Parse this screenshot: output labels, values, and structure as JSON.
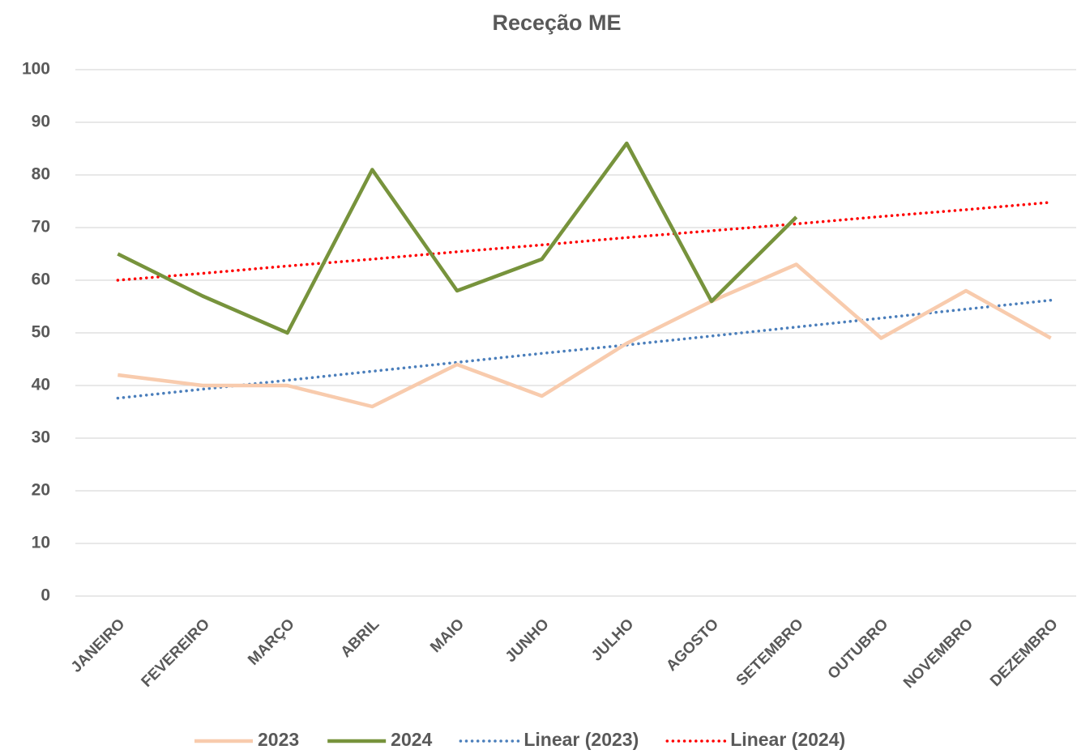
{
  "chart_data": {
    "type": "line",
    "title": "Receção ME",
    "categories": [
      "JANEIRO",
      "FEVEREIRO",
      "MARÇO",
      "ABRIL",
      "MAIO",
      "JUNHO",
      "JULHO",
      "AGOSTO",
      "SETEMBRO",
      "OUTUBRO",
      "NOVEMBRO",
      "DEZEMBRO"
    ],
    "series": [
      {
        "name": "2023",
        "color": "#f8cbad",
        "style": "solid",
        "values": [
          42,
          40,
          40,
          36,
          44,
          38,
          48,
          56,
          63,
          49,
          58,
          49
        ]
      },
      {
        "name": "2024",
        "color": "#77933c",
        "style": "solid",
        "values": [
          65,
          57,
          50,
          81,
          58,
          64,
          86,
          56,
          72,
          null,
          null,
          null
        ]
      },
      {
        "name": "Linear (2023)",
        "color": "#4a7ebb",
        "style": "dotted",
        "values": [
          37.6,
          39.3,
          41.0,
          42.7,
          44.4,
          46.1,
          47.7,
          49.4,
          51.1,
          52.8,
          54.5,
          56.2
        ]
      },
      {
        "name": "Linear (2024)",
        "color": "#ff0000",
        "style": "dotted",
        "values": [
          60.0,
          61.3,
          62.7,
          64.0,
          65.4,
          66.7,
          68.1,
          69.4,
          70.7,
          72.1,
          73.4,
          74.8
        ]
      }
    ],
    "ylim": [
      0,
      100
    ],
    "yticks": [
      0,
      10,
      20,
      30,
      40,
      50,
      60,
      70,
      80,
      90,
      100
    ],
    "grid": true,
    "legend": "bottom"
  }
}
